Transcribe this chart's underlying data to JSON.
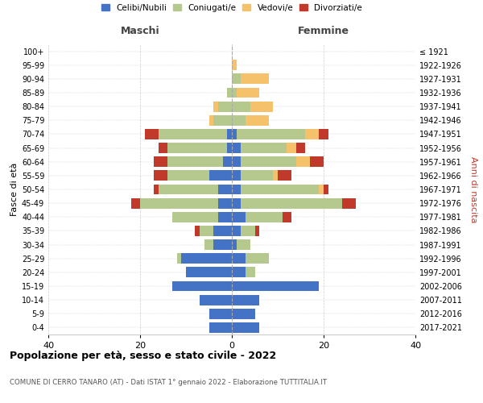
{
  "age_groups": [
    "0-4",
    "5-9",
    "10-14",
    "15-19",
    "20-24",
    "25-29",
    "30-34",
    "35-39",
    "40-44",
    "45-49",
    "50-54",
    "55-59",
    "60-64",
    "65-69",
    "70-74",
    "75-79",
    "80-84",
    "85-89",
    "90-94",
    "95-99",
    "100+"
  ],
  "birth_years": [
    "2017-2021",
    "2012-2016",
    "2007-2011",
    "2002-2006",
    "1997-2001",
    "1992-1996",
    "1987-1991",
    "1982-1986",
    "1977-1981",
    "1972-1976",
    "1967-1971",
    "1962-1966",
    "1957-1961",
    "1952-1956",
    "1947-1951",
    "1942-1946",
    "1937-1941",
    "1932-1936",
    "1927-1931",
    "1922-1926",
    "≤ 1921"
  ],
  "male": {
    "celibi": [
      5,
      5,
      7,
      13,
      10,
      11,
      4,
      4,
      3,
      3,
      3,
      5,
      2,
      1,
      1,
      0,
      0,
      0,
      0,
      0,
      0
    ],
    "coniugati": [
      0,
      0,
      0,
      0,
      0,
      1,
      2,
      3,
      10,
      17,
      13,
      9,
      12,
      13,
      15,
      4,
      3,
      1,
      0,
      0,
      0
    ],
    "vedovi": [
      0,
      0,
      0,
      0,
      0,
      0,
      0,
      0,
      0,
      0,
      0,
      0,
      0,
      0,
      0,
      1,
      1,
      0,
      0,
      0,
      0
    ],
    "divorziati": [
      0,
      0,
      0,
      0,
      0,
      0,
      0,
      1,
      0,
      2,
      1,
      3,
      3,
      2,
      3,
      0,
      0,
      0,
      0,
      0,
      0
    ]
  },
  "female": {
    "nubili": [
      6,
      5,
      6,
      19,
      3,
      3,
      1,
      2,
      3,
      2,
      2,
      2,
      2,
      2,
      1,
      0,
      0,
      0,
      0,
      0,
      0
    ],
    "coniugate": [
      0,
      0,
      0,
      0,
      2,
      5,
      3,
      3,
      8,
      22,
      17,
      7,
      12,
      10,
      15,
      3,
      4,
      1,
      2,
      0,
      0
    ],
    "vedove": [
      0,
      0,
      0,
      0,
      0,
      0,
      0,
      0,
      0,
      0,
      1,
      1,
      3,
      2,
      3,
      5,
      5,
      5,
      6,
      1,
      0
    ],
    "divorziate": [
      0,
      0,
      0,
      0,
      0,
      0,
      0,
      1,
      2,
      3,
      1,
      3,
      3,
      2,
      2,
      0,
      0,
      0,
      0,
      0,
      0
    ]
  },
  "colors": {
    "celibi_nubili": "#4472c4",
    "coniugati": "#b5c98e",
    "vedovi": "#f5c26b",
    "divorziati": "#c0392b"
  },
  "xlim": 40,
  "title": "Popolazione per età, sesso e stato civile - 2022",
  "subtitle": "COMUNE DI CERRO TANARO (AT) - Dati ISTAT 1° gennaio 2022 - Elaborazione TUTTITALIA.IT",
  "ylabel_left": "Fasce di età",
  "ylabel_right": "Anni di nascita",
  "xlabel_maschi": "Maschi",
  "xlabel_femmine": "Femmine",
  "legend_labels": [
    "Celibi/Nubili",
    "Coniugati/e",
    "Vedovi/e",
    "Divorziati/e"
  ]
}
